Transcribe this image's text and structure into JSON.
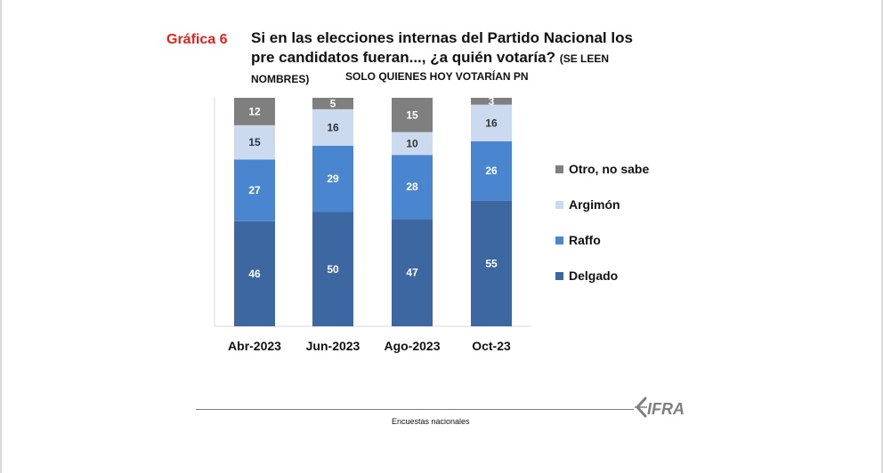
{
  "header": {
    "graf_label": "Gráfica 6",
    "title_main": "Si en las elecciones internas del Partido Nacional los pre candidatos fueran..., ¿a quién votaría?",
    "title_note": "(SE LEEN NOMBRES)",
    "subtitle": "SOLO QUIENES HOY VOTARÍAN PN"
  },
  "footer": {
    "source": "Encuestas nacionales",
    "logo_text": "CIFRA"
  },
  "colors": {
    "Delgado": "#3d67a0",
    "Raffo": "#4a86d0",
    "Argimón": "#ccdaf0",
    "Otro, no sabe": "#7f7f7f",
    "axis": "#d9d9d9",
    "title_red": "#e0231d"
  },
  "chart_data": {
    "type": "bar",
    "stacked": true,
    "categories": [
      "Abr-2023",
      "Jun-2023",
      "Ago-2023",
      "Oct-23"
    ],
    "series": [
      {
        "name": "Delgado",
        "values": [
          46,
          50,
          47,
          55
        ]
      },
      {
        "name": "Raffo",
        "values": [
          27,
          29,
          28,
          26
        ]
      },
      {
        "name": "Argimón",
        "values": [
          15,
          16,
          10,
          16
        ]
      },
      {
        "name": "Otro, no sabe",
        "values": [
          12,
          5,
          15,
          3
        ]
      }
    ],
    "legend_order": [
      "Otro, no sabe",
      "Argimón",
      "Raffo",
      "Delgado"
    ],
    "legend_position": "right",
    "ylim": [
      0,
      100
    ],
    "grid": false,
    "xlabel": "",
    "ylabel": ""
  }
}
